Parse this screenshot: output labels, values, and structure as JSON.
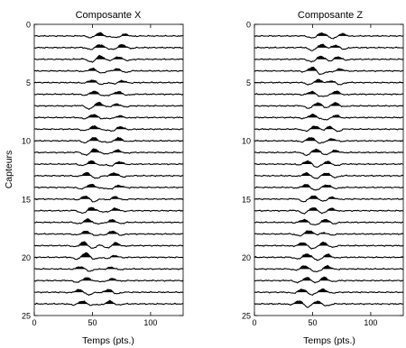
{
  "chart_data": [
    {
      "type": "line",
      "title": "Composante X",
      "xlabel": "Temps (pts.)",
      "ylabel": "Capteurs",
      "xlim": [
        0,
        128
      ],
      "ylim": [
        25,
        0
      ],
      "y_reversed": true,
      "xticks": [
        0,
        50,
        100
      ],
      "yticks": [
        0,
        5,
        10,
        15,
        20,
        25
      ],
      "grid": false,
      "legend": "none",
      "traces": {
        "count": 24,
        "baseline_start": 1,
        "baseline_step": 1,
        "samples": 129,
        "wavelet_center_first": 55,
        "wavelet_center_last": 42,
        "second_arrival_first": 75,
        "second_arrival_last": 65,
        "filled_positive_lobes": true
      }
    },
    {
      "type": "line",
      "title": "Composante Z",
      "xlabel": "Temps (pts.)",
      "ylabel": "",
      "xlim": [
        0,
        128
      ],
      "ylim": [
        25,
        0
      ],
      "y_reversed": true,
      "xticks": [
        0,
        50,
        100
      ],
      "yticks": [
        0,
        5,
        10,
        15,
        20,
        25
      ],
      "grid": false,
      "legend": "none",
      "traces": {
        "count": 24,
        "baseline_start": 1,
        "baseline_step": 1,
        "samples": 129,
        "wavelet_center_first": 55,
        "wavelet_center_last": 42,
        "second_arrival_first": 72,
        "second_arrival_last": 58,
        "filled_positive_lobes": true
      }
    }
  ]
}
